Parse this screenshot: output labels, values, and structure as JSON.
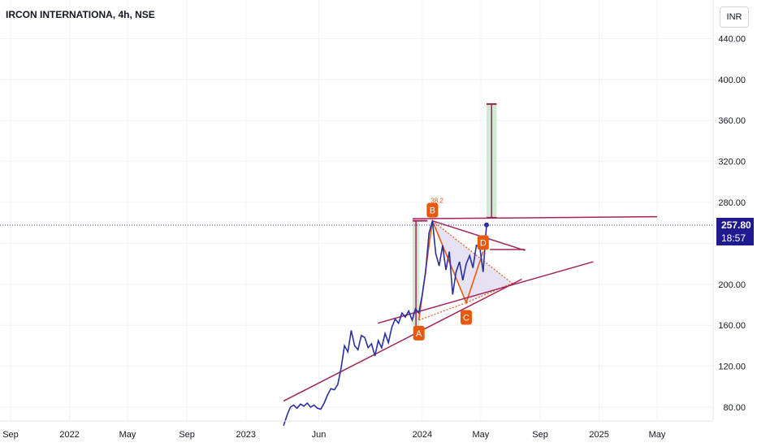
{
  "header": {
    "title": "IRCON INTERNATIONA, 4h, NSE"
  },
  "currency_button": "INR",
  "last_price": {
    "value": "257.80",
    "countdown": "18:57"
  },
  "colors": {
    "price_line": "#2a2fa0",
    "trend_line": "#a2245a",
    "label_bg": "#e8590c",
    "target_fill": "#c8e6c9",
    "triangle_fill": "#dcd6ee",
    "dotted": "#e8590c"
  },
  "chart_data": {
    "type": "line",
    "title": "IRCON INTERNATIONA, 4h, NSE",
    "ylim": [
      60,
      470
    ],
    "y_ticks": [
      80,
      120,
      160,
      200,
      240,
      280,
      320,
      360,
      400,
      440
    ],
    "y_tick_labels": [
      "80.00",
      "120.00",
      "160.00",
      "200.00",
      "",
      "280.00",
      "320.00",
      "360.00",
      "400.00",
      "440.00"
    ],
    "x_ticks": [
      "2021-09-01",
      "2022-01-01",
      "2022-05-01",
      "2022-09-01",
      "2023-01-01",
      "2023-06-01",
      "2024-01-01",
      "2024-05-01",
      "2024-09-01",
      "2025-01-01",
      "2025-05-01"
    ],
    "x_tick_labels": [
      "Sep",
      "2022",
      "May",
      "Sep",
      "2023",
      "Jun",
      "2024",
      "May",
      "Sep",
      "2025",
      "May"
    ],
    "series": [
      {
        "x": [
          "2023-03-20",
          "2023-03-27",
          "2023-04-03",
          "2023-04-10",
          "2023-04-17",
          "2023-04-24",
          "2023-05-01",
          "2023-05-08",
          "2023-05-15",
          "2023-05-22",
          "2023-05-29",
          "2023-06-05",
          "2023-06-12",
          "2023-06-19",
          "2023-06-26",
          "2023-07-03",
          "2023-07-10",
          "2023-07-17",
          "2023-07-24",
          "2023-07-31",
          "2023-08-07",
          "2023-08-14",
          "2023-08-21",
          "2023-08-28",
          "2023-09-04",
          "2023-09-11",
          "2023-09-18",
          "2023-09-25",
          "2023-10-02",
          "2023-10-09",
          "2023-10-16",
          "2023-10-23",
          "2023-10-30",
          "2023-11-06",
          "2023-11-13",
          "2023-11-20",
          "2023-11-27",
          "2023-12-04",
          "2023-12-11",
          "2023-12-18",
          "2023-12-25",
          "2024-01-01",
          "2024-01-08",
          "2024-01-15",
          "2024-01-22",
          "2024-01-29",
          "2024-02-05",
          "2024-02-12",
          "2024-02-19",
          "2024-02-26",
          "2024-03-04",
          "2024-03-11",
          "2024-03-18",
          "2024-03-25",
          "2024-04-01",
          "2024-04-08",
          "2024-04-15",
          "2024-04-22",
          "2024-04-29",
          "2024-05-06",
          "2024-05-13"
        ],
        "values": [
          62,
          72,
          80,
          82,
          79,
          83,
          81,
          84,
          80,
          82,
          79,
          78,
          84,
          92,
          98,
          97,
          102,
          118,
          140,
          134,
          155,
          140,
          136,
          150,
          148,
          138,
          142,
          130,
          145,
          138,
          152,
          143,
          158,
          166,
          162,
          172,
          168,
          174,
          165,
          176,
          172,
          190,
          212,
          250,
          262,
          230,
          218,
          238,
          214,
          232,
          190,
          212,
          222,
          204,
          220,
          228,
          216,
          238,
          236,
          212,
          258
        ]
      }
    ],
    "annotations": [
      "A",
      "B",
      "C",
      "D",
      "38.2"
    ]
  }
}
